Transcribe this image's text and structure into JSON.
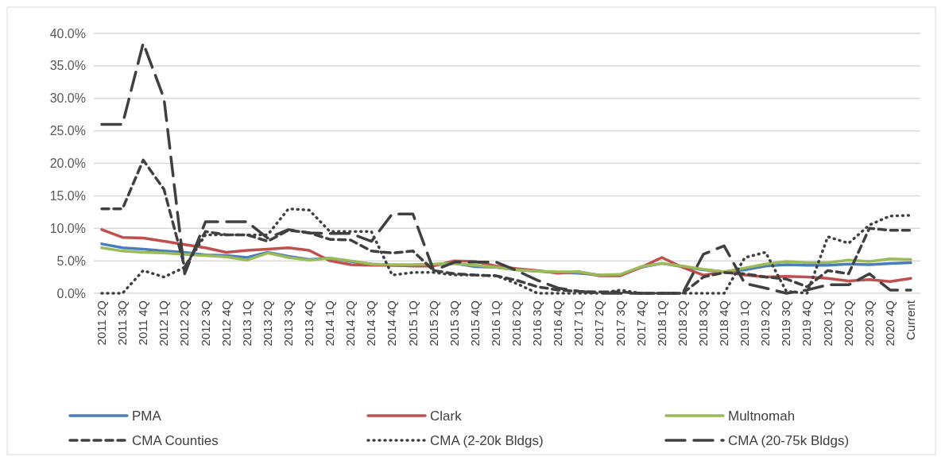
{
  "chart_data": {
    "type": "line",
    "categories": [
      "2011 2Q",
      "2011 3Q",
      "2011 4Q",
      "2012 1Q",
      "2012 2Q",
      "2012 3Q",
      "2012 4Q",
      "2013 1Q",
      "2013 2Q",
      "2013 3Q",
      "2013 4Q",
      "2014 1Q",
      "2014 2Q",
      "2014 3Q",
      "2014 4Q",
      "2015 1Q",
      "2015 2Q",
      "2015 3Q",
      "2015 4Q",
      "2016 1Q",
      "2016 2Q",
      "2016 3Q",
      "2016 4Q",
      "2017 1Q",
      "2017 2Q",
      "2017 3Q",
      "2017 4Q",
      "2018 1Q",
      "2018 2Q",
      "2018 3Q",
      "2018 4Q",
      "2019 1Q",
      "2019 2Q",
      "2019 3Q",
      "2019 4Q",
      "2020 1Q",
      "2020 2Q",
      "2020 3Q",
      "2020 4Q",
      "Current"
    ],
    "series": [
      {
        "name": "PMA",
        "color": "#4a7ebb",
        "line_style": "solid",
        "values": [
          7.6,
          7,
          6.8,
          6.5,
          6.3,
          5.9,
          5.8,
          5.5,
          6.3,
          5.7,
          5.2,
          5.4,
          4.9,
          4.5,
          4.3,
          4.3,
          4.4,
          4.6,
          4.1,
          4,
          3.6,
          3.4,
          3.2,
          3.1,
          2.8,
          null,
          4,
          4.6,
          4.1,
          3.6,
          3.3,
          3.6,
          4.2,
          4.4,
          4.3,
          4.3,
          4.5,
          4.4,
          4.6,
          4.7
        ]
      },
      {
        "name": "Clark",
        "color": "#c0504d",
        "line_style": "solid",
        "values": [
          9.8,
          8.6,
          8.5,
          8,
          7.5,
          7,
          6.3,
          6.6,
          6.8,
          7,
          6.6,
          5,
          4.4,
          4.3,
          4.3,
          4.2,
          4.2,
          5,
          4.9,
          4.2,
          3.8,
          3.5,
          3.1,
          3.3,
          2.7,
          2.7,
          4,
          5.5,
          4,
          2.8,
          3.3,
          2.8,
          2.5,
          2.6,
          2.5,
          2.3,
          1.9,
          2.1,
          1.8,
          2.3
        ]
      },
      {
        "name": "Multnomah",
        "color": "#9bbb59",
        "line_style": "solid",
        "values": [
          7,
          6.5,
          6.3,
          6.2,
          6,
          5.8,
          5.6,
          5.1,
          6.2,
          5.5,
          5.1,
          5.4,
          5,
          4.5,
          4.4,
          4.4,
          4.5,
          4.6,
          4.3,
          4,
          3.6,
          3.4,
          3.3,
          3.3,
          2.8,
          2.9,
          4.1,
          4.6,
          4.2,
          3.7,
          3.3,
          3.9,
          4.5,
          4.9,
          4.7,
          4.7,
          5.1,
          4.9,
          5.3,
          5.2
        ]
      },
      {
        "name": "CMA Counties",
        "color": "#404040",
        "line_style": "dashed",
        "values": [
          13,
          13,
          20.5,
          16,
          4,
          9.5,
          9,
          9,
          8,
          9.7,
          9.3,
          8.3,
          8.2,
          6.5,
          6.2,
          6.5,
          3.5,
          3,
          2.8,
          2.7,
          2,
          1,
          0.5,
          0.3,
          0.2,
          0.2,
          0,
          0,
          0,
          2.5,
          3.2,
          3,
          2.5,
          2.2,
          1,
          3.5,
          3,
          10,
          9.7,
          9.7
        ]
      },
      {
        "name": "CMA (2-20k Bldgs)",
        "color": "#404040",
        "line_style": "dotted",
        "values": [
          0,
          0,
          3.5,
          2.5,
          4,
          9,
          9,
          9,
          9,
          13,
          12.8,
          9.5,
          9.5,
          9.5,
          2.8,
          3.2,
          3.2,
          2.8,
          2.8,
          2.7,
          1.5,
          0,
          0,
          0,
          0,
          0.5,
          0,
          0,
          0,
          0,
          0,
          5.5,
          6.3,
          0.3,
          0,
          8.7,
          7.7,
          10.5,
          11.9,
          12
        ]
      },
      {
        "name": "CMA (20-75k Bldgs)",
        "color": "#404040",
        "line_style": "dashed",
        "values": [
          26,
          26,
          38.5,
          30,
          3,
          11,
          11,
          11,
          8.5,
          9.8,
          9.3,
          9.2,
          9.2,
          8,
          12.2,
          12.2,
          3.5,
          4.8,
          4.8,
          4.8,
          3.5,
          2,
          0.8,
          0.3,
          0,
          0,
          0,
          0,
          0,
          6,
          7.3,
          1.5,
          0.8,
          0,
          0.5,
          1.3,
          1.3,
          3,
          0.5,
          0.5
        ]
      }
    ],
    "ylim": [
      0,
      40
    ],
    "yticks": [
      {
        "value": 0,
        "label": "0.0%"
      },
      {
        "value": 5,
        "label": "5.0%"
      },
      {
        "value": 10,
        "label": "10.0%"
      },
      {
        "value": 15,
        "label": "15.0%"
      },
      {
        "value": 20,
        "label": "20.0%"
      },
      {
        "value": 25,
        "label": "25.0%"
      },
      {
        "value": 30,
        "label": "30.0%"
      },
      {
        "value": 35,
        "label": "35.0%"
      },
      {
        "value": 40,
        "label": "40.0%"
      }
    ],
    "grid": "y",
    "legend": "bottom",
    "marker": "none"
  }
}
